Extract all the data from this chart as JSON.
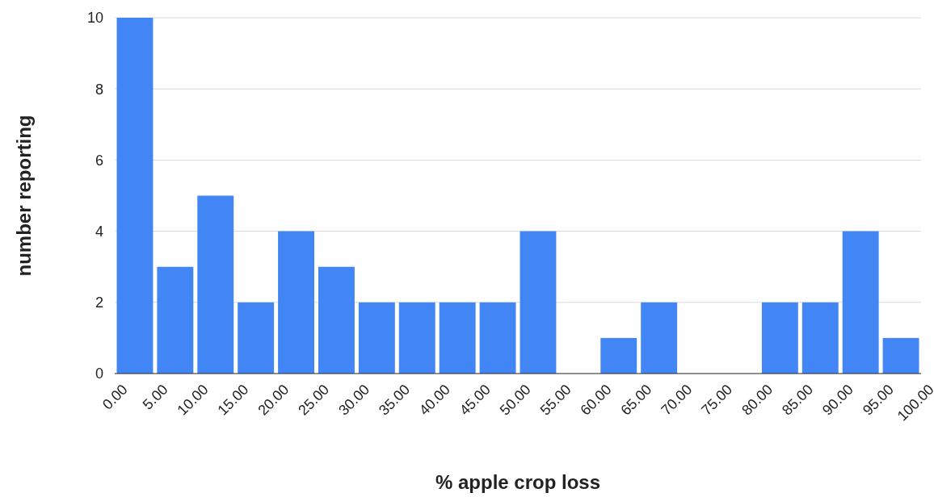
{
  "chart_data": {
    "type": "histogram",
    "xlabel": "% apple crop loss",
    "ylabel": "number reporting",
    "color": "#4285f4",
    "bins": [
      0,
      5,
      10,
      15,
      20,
      25,
      30,
      35,
      40,
      45,
      50,
      55,
      60,
      65,
      70,
      75,
      80,
      85,
      90,
      95,
      100
    ],
    "values": [
      10,
      3,
      5,
      2,
      4,
      3,
      2,
      2,
      2,
      2,
      4,
      0,
      1,
      2,
      0,
      0,
      2,
      2,
      4,
      1
    ],
    "xlim": [
      0,
      100
    ],
    "xticks": [
      {
        "value": 0,
        "label": "0.00"
      },
      {
        "value": 5,
        "label": "5.00"
      },
      {
        "value": 10,
        "label": "10.00"
      },
      {
        "value": 15,
        "label": "15.00"
      },
      {
        "value": 20,
        "label": "20.00"
      },
      {
        "value": 25,
        "label": "25.00"
      },
      {
        "value": 30,
        "label": "30.00"
      },
      {
        "value": 35,
        "label": "35.00"
      },
      {
        "value": 40,
        "label": "40.00"
      },
      {
        "value": 45,
        "label": "45.00"
      },
      {
        "value": 50,
        "label": "50.00"
      },
      {
        "value": 55,
        "label": "55.00"
      },
      {
        "value": 60,
        "label": "60.00"
      },
      {
        "value": 65,
        "label": "65.00"
      },
      {
        "value": 70,
        "label": "70.00"
      },
      {
        "value": 75,
        "label": "75.00"
      },
      {
        "value": 80,
        "label": "80.00"
      },
      {
        "value": 85,
        "label": "85.00"
      },
      {
        "value": 90,
        "label": "90.00"
      },
      {
        "value": 95,
        "label": "95.00"
      },
      {
        "value": 100,
        "label": "100.00"
      }
    ],
    "ylim": [
      0,
      10
    ],
    "yticks": [
      0,
      2,
      4,
      6,
      8,
      10
    ],
    "grid": "y"
  }
}
